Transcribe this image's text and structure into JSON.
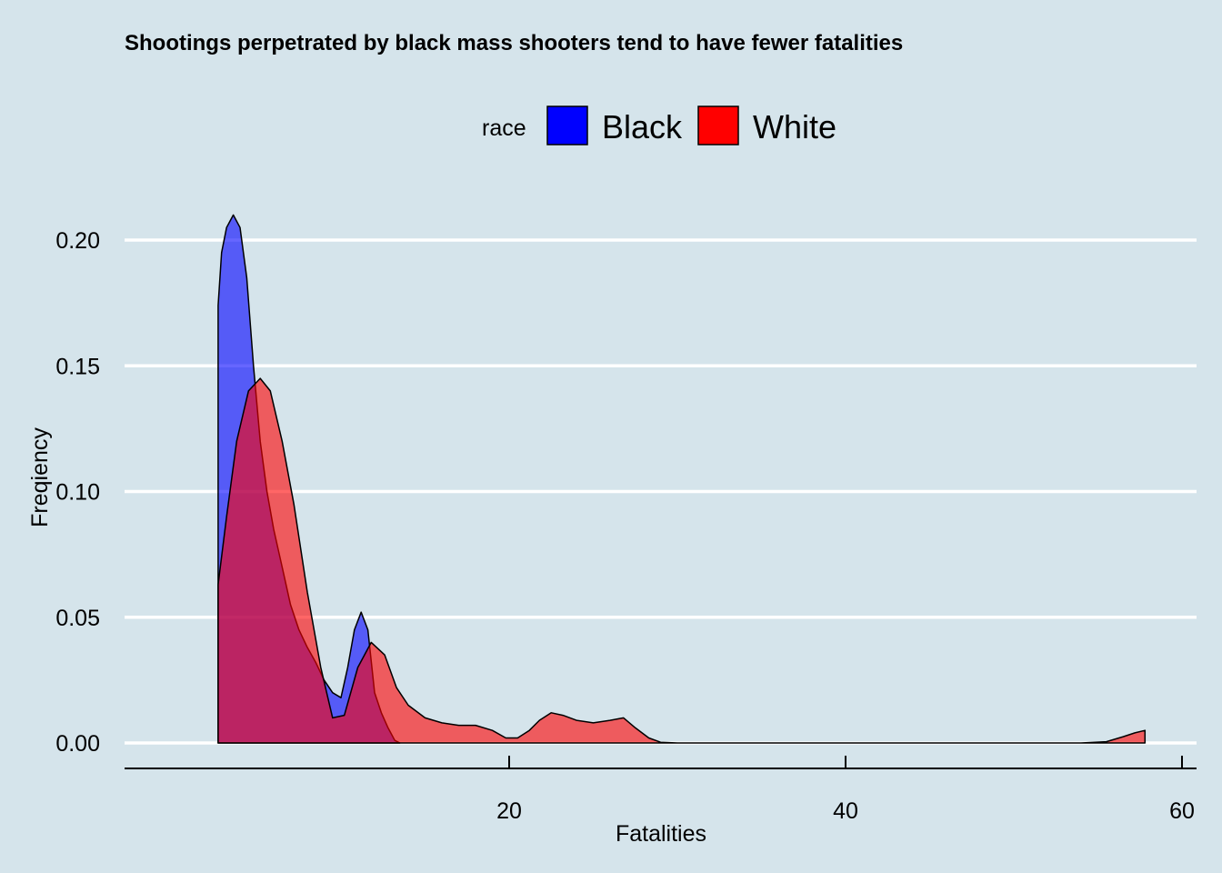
{
  "chart_data": {
    "type": "area",
    "title": "Shootings perpetrated by black mass shooters tend to have fewer fatalities",
    "xlabel": "Fatalities",
    "ylabel": "Freqiency",
    "legend": {
      "title": "race",
      "position": "top",
      "entries": [
        {
          "name": "Black",
          "color": "#0000ff"
        },
        {
          "name": "White",
          "color": "#ff0000"
        }
      ]
    },
    "xlim": [
      0,
      60
    ],
    "ylim": [
      0,
      0.21
    ],
    "x_ticks": [
      20,
      40,
      60
    ],
    "x_tick_labels": [
      "20",
      "40",
      "60"
    ],
    "y_ticks": [
      0,
      0.05,
      0.1,
      0.15,
      0.2
    ],
    "y_tick_labels": [
      "0.00",
      "0.05",
      "0.10",
      "0.15",
      "0.20"
    ],
    "grid": "horizontal-major",
    "series": [
      {
        "name": "Black",
        "color": "#0000ff",
        "fill_opacity": 0.6,
        "x": [
          2.7,
          2.9,
          3.2,
          3.6,
          4.0,
          4.4,
          4.8,
          5.2,
          5.6,
          6.0,
          6.5,
          7.0,
          7.5,
          8.0,
          8.5,
          9.0,
          9.5,
          10.0,
          10.4,
          10.8,
          11.2,
          11.6,
          12.0,
          12.4,
          12.8,
          13.2,
          13.5
        ],
        "y": [
          0.174,
          0.195,
          0.205,
          0.21,
          0.205,
          0.185,
          0.15,
          0.12,
          0.1,
          0.085,
          0.07,
          0.055,
          0.045,
          0.038,
          0.032,
          0.025,
          0.02,
          0.018,
          0.03,
          0.045,
          0.052,
          0.045,
          0.02,
          0.012,
          0.006,
          0.001,
          0.0
        ]
      },
      {
        "name": "White",
        "color": "#ff0000",
        "fill_opacity": 0.6,
        "x": [
          2.7,
          3.2,
          3.8,
          4.5,
          5.2,
          5.8,
          6.5,
          7.2,
          8.0,
          8.8,
          9.5,
          10.2,
          11.0,
          11.8,
          12.6,
          13.3,
          14.0,
          15.0,
          16.0,
          17.0,
          18.0,
          19.0,
          19.8,
          20.5,
          21.2,
          21.8,
          22.5,
          23.2,
          24.0,
          25.0,
          26.0,
          26.8,
          27.5,
          28.3,
          29.0,
          30.0,
          35.0,
          40.0,
          45.0,
          50.0,
          54.0,
          55.5,
          56.5,
          57.2,
          57.8
        ],
        "y": [
          0.063,
          0.09,
          0.12,
          0.14,
          0.145,
          0.14,
          0.12,
          0.095,
          0.06,
          0.03,
          0.01,
          0.011,
          0.03,
          0.04,
          0.035,
          0.022,
          0.015,
          0.01,
          0.008,
          0.007,
          0.007,
          0.005,
          0.002,
          0.002,
          0.005,
          0.009,
          0.012,
          0.011,
          0.009,
          0.008,
          0.009,
          0.01,
          0.006,
          0.002,
          0.0003,
          0.0,
          0.0,
          0.0,
          0.0,
          0.0,
          0.0,
          0.0005,
          0.0025,
          0.004,
          0.005
        ]
      }
    ]
  }
}
